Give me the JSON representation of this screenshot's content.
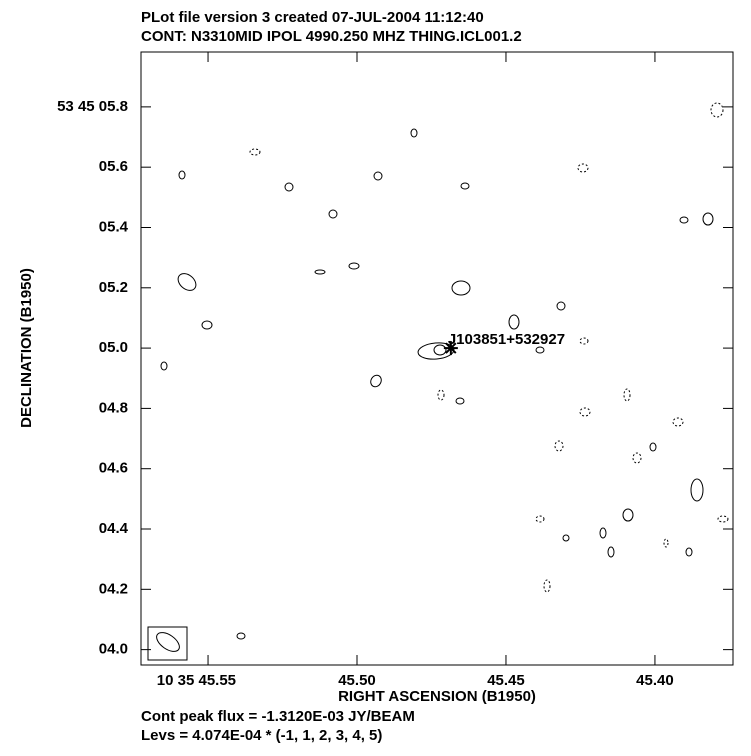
{
  "chart_data": {
    "type": "contour",
    "title": "PLot file version 3  created 07-JUL-2004 11:12:40",
    "subtitle": "CONT: N3310MID  IPOL  4990.250 MHZ  THING.ICL001.2",
    "x_label": "RIGHT ASCENSION (B1950)",
    "y_label": "DECLINATION (B1950)",
    "xlim": [
      45.5725,
      45.3738
    ],
    "xticks": [
      {
        "value": 45.55,
        "label": "10 35 45.55"
      },
      {
        "value": 45.5,
        "label": "45.50"
      },
      {
        "value": 45.45,
        "label": "45.45"
      },
      {
        "value": 45.4,
        "label": "45.40"
      }
    ],
    "ylim": [
      3.949,
      5.982
    ],
    "yticks": [
      {
        "value": 5.8,
        "label": "53 45 05.8"
      },
      {
        "value": 5.6,
        "label": "05.6"
      },
      {
        "value": 5.4,
        "label": "05.4"
      },
      {
        "value": 5.2,
        "label": "05.2"
      },
      {
        "value": 5.0,
        "label": "05.0"
      },
      {
        "value": 4.8,
        "label": "04.8"
      },
      {
        "value": 4.6,
        "label": "04.6"
      },
      {
        "value": 4.4,
        "label": "04.4"
      },
      {
        "value": 4.2,
        "label": "04.2"
      },
      {
        "value": 4.0,
        "label": "04.0"
      }
    ],
    "source": {
      "label": "J103851+532927",
      "x": 45.4685,
      "y": 5.0
    },
    "footer": [
      "Cont peak flux = -1.3120E-03 JY/BEAM",
      "Levs = 4.074E-04 * (-1, 1, 2, 3, 4, 5)"
    ]
  }
}
